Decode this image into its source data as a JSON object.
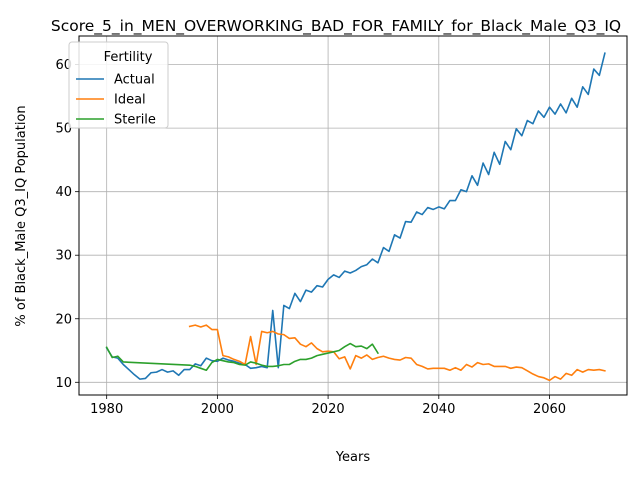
{
  "chart_data": {
    "type": "line",
    "title": "Score_5_in_MEN_OVERWORKING_BAD_FOR_FAMILY_for_Black_Male_Q3_IQ",
    "xlabel": "Years",
    "ylabel": "% of Black_Male Q3_IQ Population",
    "xlim": [
      1975,
      2074
    ],
    "ylim": [
      8,
      64.5
    ],
    "xticks": [
      1980,
      2000,
      2020,
      2040,
      2060
    ],
    "yticks": [
      10,
      20,
      30,
      40,
      50,
      60
    ],
    "grid": true,
    "legend": {
      "title": "Fertility",
      "placement": "top-left"
    },
    "colors": {
      "Actual": "#1f77b4",
      "Ideal": "#ff7f0e",
      "Sterile": "#2ca02c"
    },
    "series": [
      {
        "name": "Actual",
        "x": [
          1980,
          1981,
          1982,
          1983,
          1984,
          1985,
          1986,
          1987,
          1988,
          1989,
          1990,
          1991,
          1992,
          1993,
          1994,
          1995,
          1996,
          1997,
          1998,
          1999,
          2000,
          2001,
          2002,
          2003,
          2004,
          2005,
          2006,
          2007,
          2008,
          2009,
          2010,
          2011,
          2012,
          2013,
          2014,
          2015,
          2016,
          2017,
          2018,
          2019,
          2020,
          2021,
          2022,
          2023,
          2024,
          2025,
          2026,
          2027,
          2028,
          2029,
          2030,
          2031,
          2032,
          2033,
          2034,
          2035,
          2036,
          2037,
          2038,
          2039,
          2040,
          2041,
          2042,
          2043,
          2044,
          2045,
          2046,
          2047,
          2048,
          2049,
          2050,
          2051,
          2052,
          2053,
          2054,
          2055,
          2056,
          2057,
          2058,
          2059,
          2060,
          2061,
          2062,
          2063,
          2064,
          2065,
          2066,
          2067,
          2068,
          2069,
          2070
        ],
        "values": [
          15.4,
          14.0,
          13.8,
          12.8,
          12.0,
          11.2,
          10.5,
          10.6,
          11.5,
          11.6,
          12.0,
          11.6,
          11.8,
          11.1,
          12.0,
          12.0,
          12.9,
          12.6,
          13.8,
          13.4,
          13.3,
          13.8,
          13.5,
          13.3,
          13.0,
          12.8,
          12.2,
          12.3,
          12.5,
          12.3,
          21.3,
          12.3,
          22.1,
          21.6,
          24.0,
          22.7,
          24.5,
          24.2,
          25.2,
          25.0,
          26.2,
          26.9,
          26.5,
          27.5,
          27.2,
          27.6,
          28.2,
          28.5,
          29.4,
          28.8,
          31.2,
          30.6,
          33.2,
          32.7,
          35.3,
          35.2,
          36.8,
          36.4,
          37.5,
          37.2,
          37.6,
          37.3,
          38.6,
          38.6,
          40.3,
          40.0,
          42.5,
          41.0,
          44.5,
          42.7,
          46.2,
          44.3,
          47.9,
          46.6,
          49.9,
          48.8,
          51.2,
          50.7,
          52.7,
          51.7,
          53.3,
          52.2,
          53.8,
          52.4,
          54.7,
          53.3,
          56.5,
          55.3,
          59.3,
          58.3,
          61.8
        ]
      },
      {
        "name": "Ideal",
        "x": [
          1995,
          1996,
          1997,
          1998,
          1999,
          2000,
          2001,
          2002,
          2003,
          2004,
          2005,
          2006,
          2007,
          2008,
          2009,
          2010,
          2011,
          2012,
          2013,
          2014,
          2015,
          2016,
          2017,
          2018,
          2019,
          2020,
          2021,
          2022,
          2023,
          2024,
          2025,
          2026,
          2027,
          2028,
          2029,
          2030,
          2031,
          2032,
          2033,
          2034,
          2035,
          2036,
          2037,
          2038,
          2039,
          2040,
          2041,
          2042,
          2043,
          2044,
          2045,
          2046,
          2047,
          2048,
          2049,
          2050,
          2051,
          2052,
          2053,
          2054,
          2055,
          2056,
          2057,
          2058,
          2059,
          2060,
          2061,
          2062,
          2063,
          2064,
          2065,
          2066,
          2067,
          2068,
          2069,
          2070
        ],
        "values": [
          18.8,
          19.0,
          18.7,
          19.0,
          18.3,
          18.3,
          14.2,
          14.0,
          13.6,
          13.3,
          12.8,
          17.2,
          12.8,
          18.0,
          17.8,
          18.0,
          17.6,
          17.5,
          16.9,
          17.0,
          16.0,
          15.6,
          16.2,
          15.3,
          14.8,
          14.9,
          14.8,
          13.7,
          14.0,
          12.1,
          14.2,
          13.8,
          14.3,
          13.6,
          13.9,
          14.1,
          13.8,
          13.6,
          13.5,
          13.9,
          13.8,
          12.8,
          12.5,
          12.1,
          12.2,
          12.2,
          12.2,
          11.9,
          12.3,
          11.9,
          12.8,
          12.4,
          13.1,
          12.8,
          12.9,
          12.5,
          12.5,
          12.5,
          12.2,
          12.4,
          12.3,
          11.8,
          11.3,
          10.9,
          10.7,
          10.3,
          10.9,
          10.5,
          11.4,
          11.1,
          12.0,
          11.6,
          12.0,
          11.9,
          12.0,
          11.8
        ]
      },
      {
        "name": "Sterile",
        "x": [
          1980,
          1981,
          1982,
          1983,
          1995,
          1996,
          1997,
          1998,
          1999,
          2000,
          2001,
          2002,
          2003,
          2004,
          2005,
          2006,
          2007,
          2008,
          2009,
          2010,
          2011,
          2012,
          2013,
          2014,
          2015,
          2016,
          2017,
          2018,
          2019,
          2020,
          2021,
          2022,
          2023,
          2024,
          2025,
          2026,
          2027,
          2028,
          2029
        ],
        "values": [
          15.5,
          13.9,
          14.1,
          13.2,
          12.7,
          12.5,
          12.2,
          11.9,
          13.1,
          13.6,
          13.4,
          13.2,
          13.1,
          12.8,
          12.7,
          13.2,
          13.0,
          12.7,
          12.5,
          12.5,
          12.6,
          12.8,
          12.8,
          13.3,
          13.6,
          13.6,
          13.8,
          14.2,
          14.4,
          14.6,
          14.8,
          15.0,
          15.6,
          16.1,
          15.6,
          15.7,
          15.3,
          16.0,
          14.6
        ]
      }
    ]
  }
}
